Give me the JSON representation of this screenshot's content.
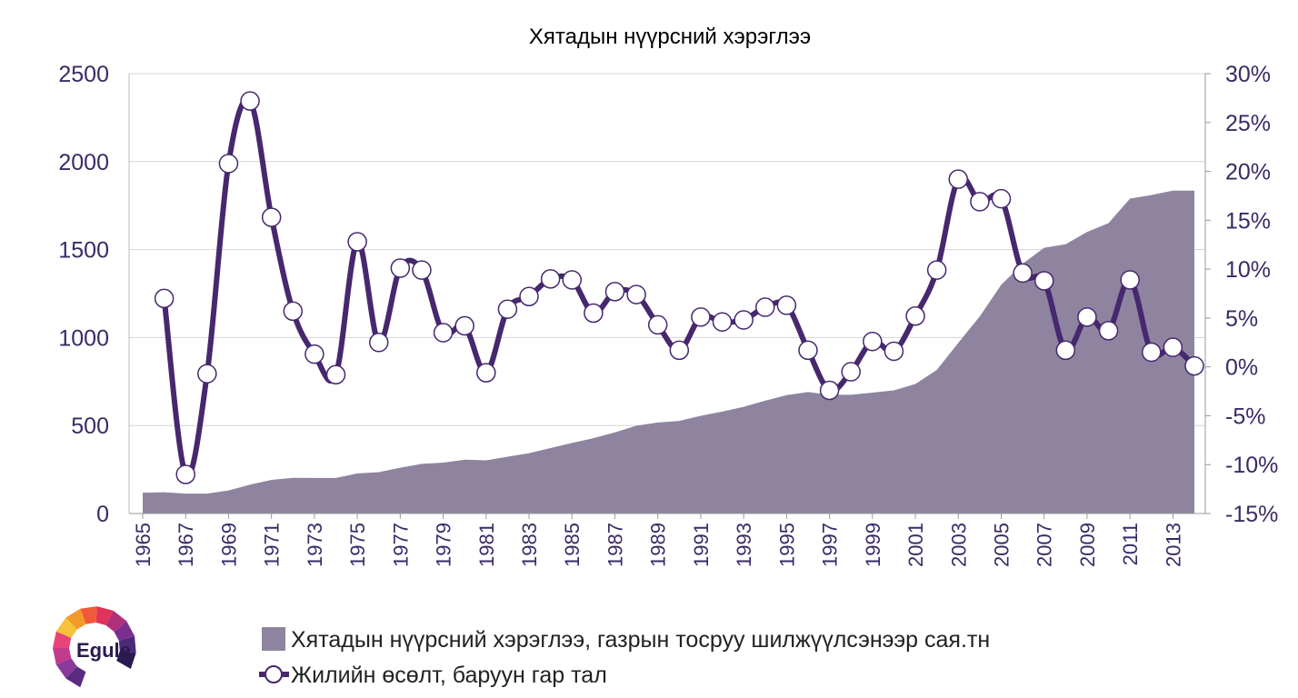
{
  "chart_data": {
    "type": "line",
    "title": "Хятадын нүүрсний хэрэглээ",
    "x": [
      1965,
      1966,
      1967,
      1968,
      1969,
      1970,
      1971,
      1972,
      1973,
      1974,
      1975,
      1976,
      1977,
      1978,
      1979,
      1980,
      1981,
      1982,
      1983,
      1984,
      1985,
      1986,
      1987,
      1988,
      1989,
      1990,
      1991,
      1992,
      1993,
      1994,
      1995,
      1996,
      1997,
      1998,
      1999,
      2000,
      2001,
      2002,
      2003,
      2004,
      2005,
      2006,
      2007,
      2008,
      2009,
      2010,
      2011,
      2012,
      2013,
      2014
    ],
    "x_tick_labels": [
      "1965",
      "1967",
      "1969",
      "1971",
      "1973",
      "1975",
      "1977",
      "1979",
      "1981",
      "1983",
      "1985",
      "1987",
      "1989",
      "1991",
      "1993",
      "1995",
      "1997",
      "1999",
      "2001",
      "2003",
      "2005",
      "2007",
      "2009",
      "2011",
      "2013"
    ],
    "left_axis": {
      "ylim": [
        0,
        2500
      ],
      "tick_labels": [
        "0",
        "500",
        "1000",
        "1500",
        "2000",
        "2500"
      ]
    },
    "right_axis": {
      "ylim": [
        -15,
        30
      ],
      "unit": "%",
      "tick_labels": [
        "-15%",
        "-10%",
        "-5%",
        "0%",
        "5%",
        "10%",
        "15%",
        "20%",
        "25%",
        "30%"
      ]
    },
    "grid": true,
    "legend_position": "bottom",
    "series": [
      {
        "name": "Хятадын нүүрсний хэрэглээ, газрын тосруу шилжүүлсэнээр сая.тн",
        "type": "area",
        "axis": "left",
        "color": "#8e84a0",
        "values": [
          118,
          121,
          113,
          113,
          131,
          164,
          191,
          203,
          202,
          202,
          228,
          235,
          260,
          282,
          289,
          306,
          302,
          323,
          343,
          372,
          401,
          428,
          461,
          499,
          517,
          526,
          555,
          579,
          606,
          641,
          673,
          690,
          675,
          675,
          687,
          700,
          736,
          816,
          970,
          1120,
          1300,
          1420,
          1510,
          1530,
          1600,
          1650,
          1790,
          1810,
          1835,
          1835
        ]
      },
      {
        "name": "Жилийн өсөлт, баруун гар тал",
        "type": "line",
        "axis": "right",
        "color": "#46286e",
        "values": [
          null,
          7.0,
          -11.0,
          -0.7,
          20.8,
          27.2,
          15.3,
          5.7,
          1.3,
          -0.8,
          12.8,
          2.5,
          10.1,
          9.9,
          3.5,
          4.2,
          -0.6,
          5.9,
          7.2,
          9.0,
          8.9,
          5.5,
          7.7,
          7.4,
          4.3,
          1.7,
          5.1,
          4.6,
          4.8,
          6.1,
          6.3,
          1.7,
          -2.4,
          -0.5,
          2.6,
          1.6,
          5.2,
          9.9,
          19.2,
          16.9,
          17.2,
          9.6,
          8.8,
          1.7,
          5.1,
          3.7,
          8.9,
          1.5,
          2.0,
          0.1
        ]
      }
    ]
  },
  "logo": {
    "text": "Egule"
  }
}
